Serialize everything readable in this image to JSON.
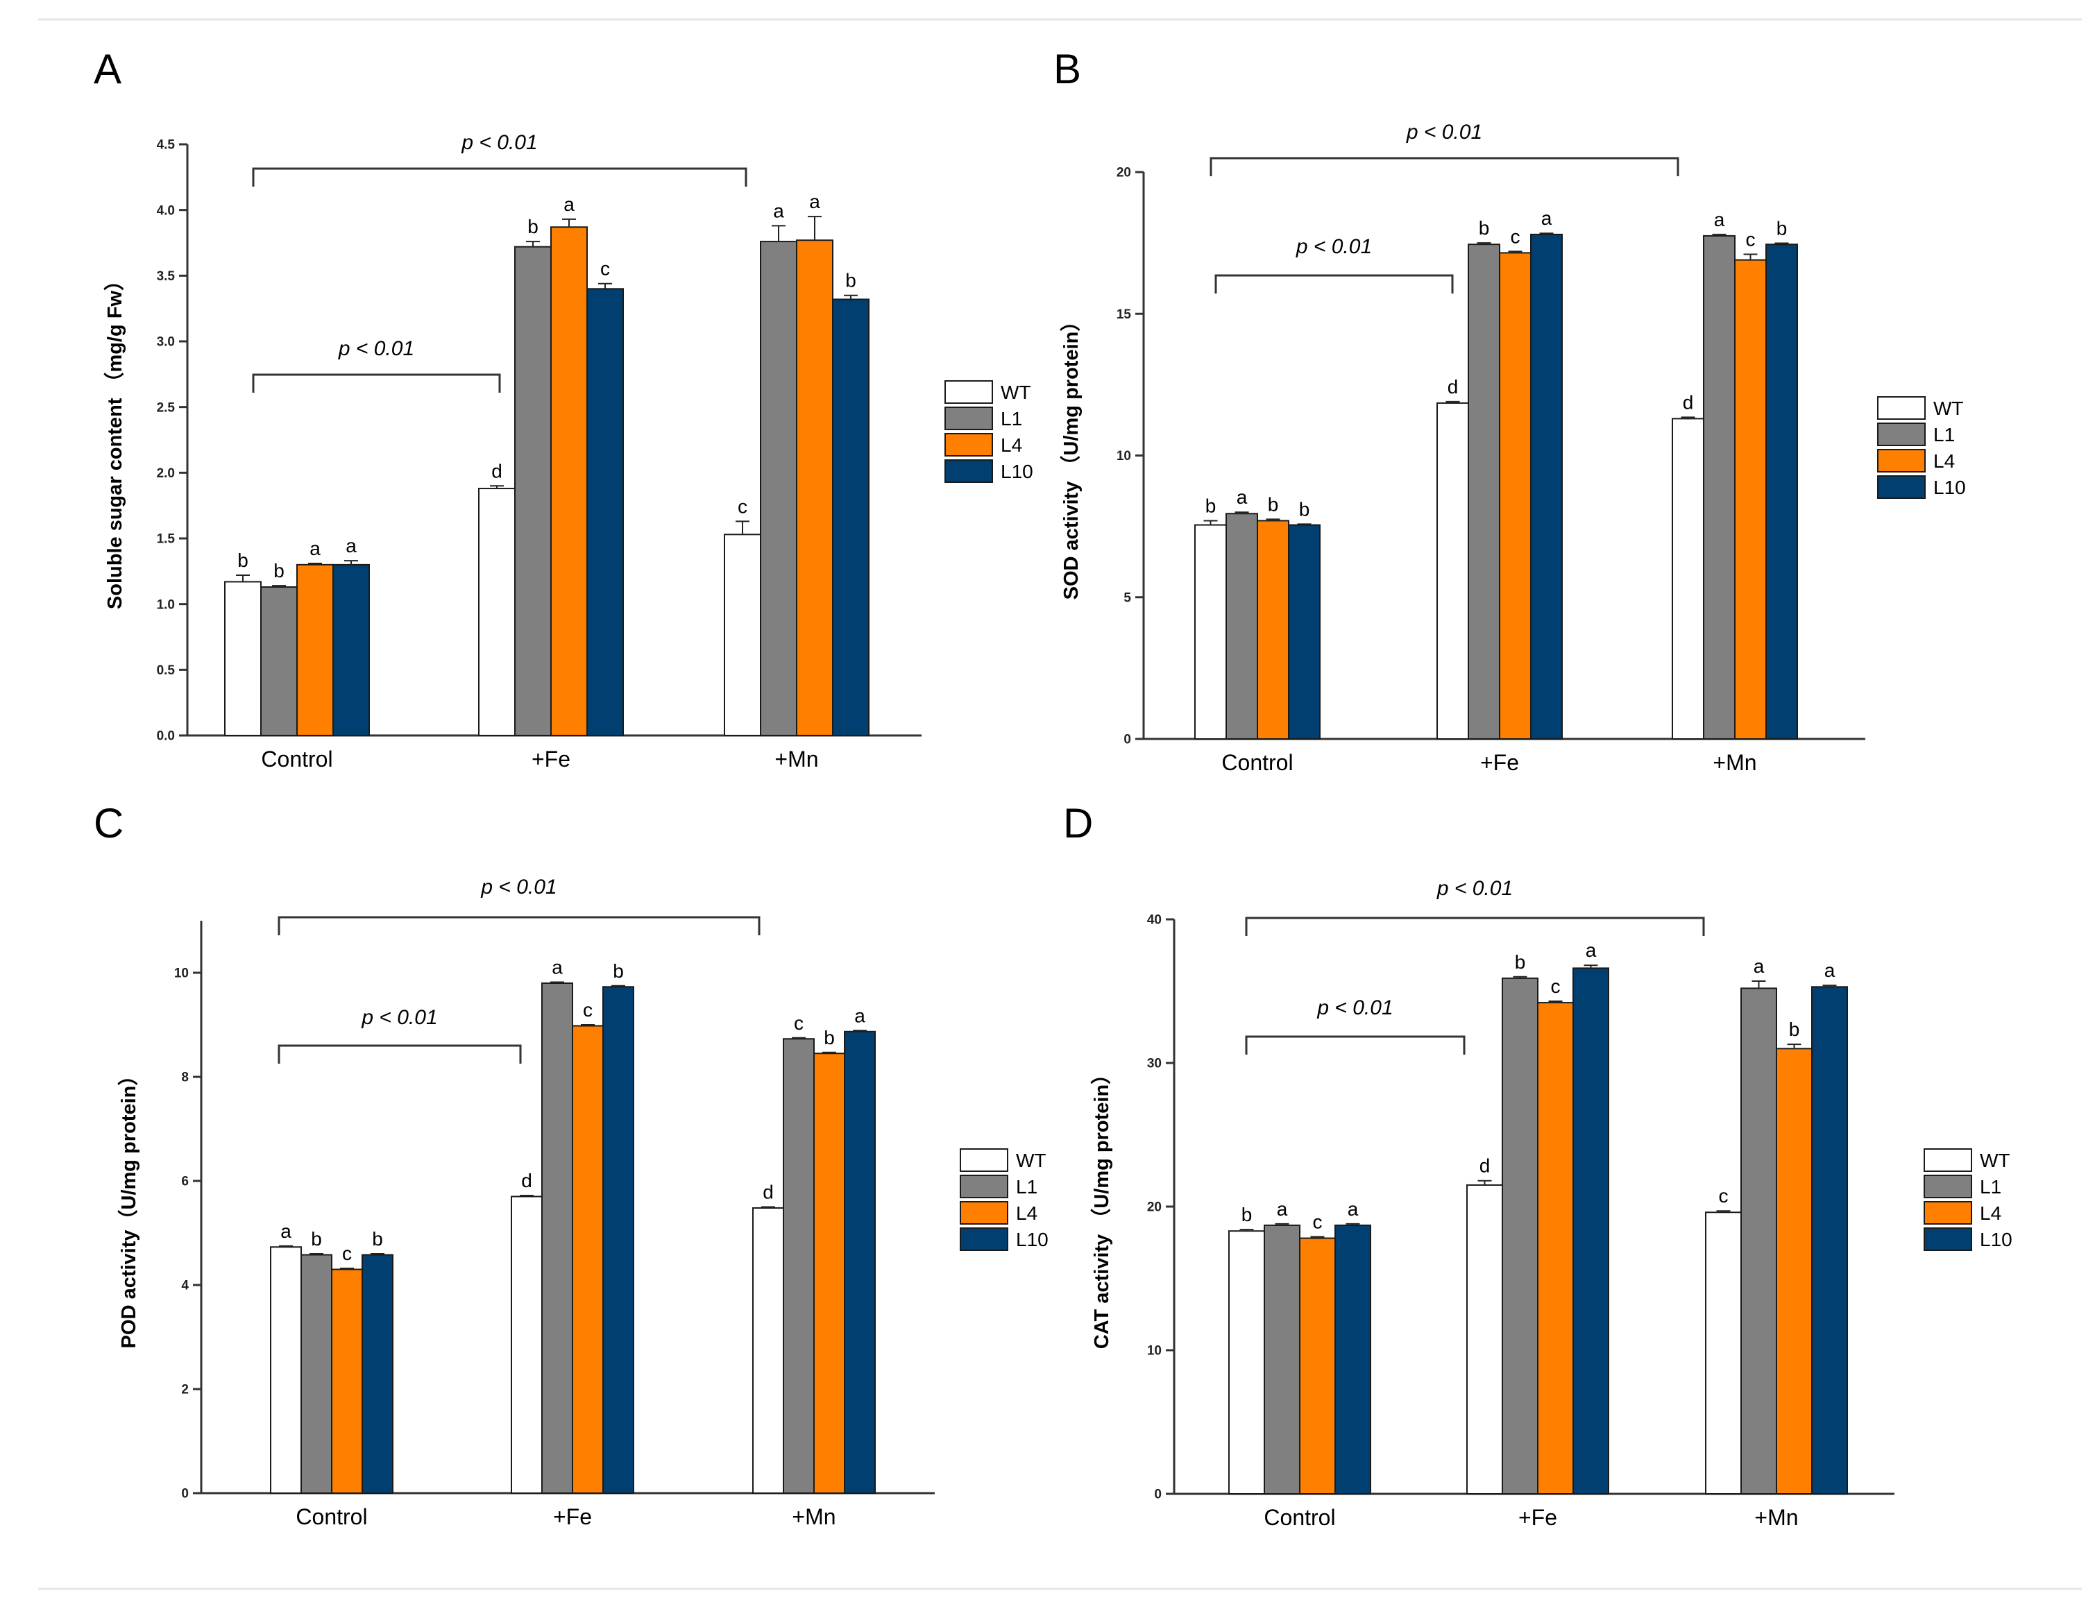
{
  "series": [
    {
      "name": "WT",
      "color": "#ffffff"
    },
    {
      "name": "L1",
      "color": "#808080"
    },
    {
      "name": "L4",
      "color": "#ff8000"
    },
    {
      "name": "L10",
      "color": "#003f6f"
    }
  ],
  "categories": [
    "Control",
    "+Fe",
    "+Mn"
  ],
  "chart_data": [
    {
      "panel": "A",
      "type": "bar",
      "title": "",
      "ylabel": "Soluble sugar content （mg/g Fw）",
      "ylim": [
        0,
        4.5
      ],
      "yticks": [
        "0.0",
        "0.5",
        "1.0",
        "1.5",
        "2.0",
        "2.5",
        "3.0",
        "3.5",
        "4.0",
        "4.5"
      ],
      "categories": [
        "Control",
        "+Fe",
        "+Mn"
      ],
      "series": [
        {
          "name": "WT",
          "values": [
            1.17,
            1.88,
            1.53
          ],
          "errors": [
            0.05,
            0.02,
            0.1
          ],
          "letters": [
            "b",
            "d",
            "c"
          ]
        },
        {
          "name": "L1",
          "values": [
            1.13,
            3.72,
            3.76
          ],
          "errors": [
            0.01,
            0.04,
            0.12
          ],
          "letters": [
            "b",
            "b",
            "a"
          ]
        },
        {
          "name": "L4",
          "values": [
            1.3,
            3.87,
            3.77
          ],
          "errors": [
            0.01,
            0.06,
            0.18
          ],
          "letters": [
            "a",
            "a",
            "a"
          ]
        },
        {
          "name": "L10",
          "values": [
            1.3,
            3.4,
            3.32
          ],
          "errors": [
            0.03,
            0.04,
            0.03
          ],
          "letters": [
            "a",
            "c",
            "b"
          ]
        }
      ],
      "brackets": [
        {
          "from": 0,
          "to": 2,
          "label": "p < 0.01"
        },
        {
          "from": 0,
          "to": 1,
          "label": "p < 0.01"
        }
      ]
    },
    {
      "panel": "B",
      "type": "bar",
      "title": "",
      "ylabel": "SOD activity （U/mg  protein）",
      "ylim": [
        0,
        20
      ],
      "yticks": [
        "0",
        "5",
        "10",
        "15",
        "20"
      ],
      "categories": [
        "Control",
        "+Fe",
        "+Mn"
      ],
      "series": [
        {
          "name": "WT",
          "values": [
            7.55,
            11.85,
            11.3
          ],
          "errors": [
            0.15,
            0.05,
            0.05
          ],
          "letters": [
            "b",
            "d",
            "d"
          ]
        },
        {
          "name": "L1",
          "values": [
            7.95,
            17.45,
            17.75
          ],
          "errors": [
            0.05,
            0.05,
            0.05
          ],
          "letters": [
            "a",
            "b",
            "a"
          ]
        },
        {
          "name": "L4",
          "values": [
            7.7,
            17.15,
            16.9
          ],
          "errors": [
            0.05,
            0.05,
            0.2
          ],
          "letters": [
            "b",
            "c",
            "c"
          ]
        },
        {
          "name": "L10",
          "values": [
            7.55,
            17.8,
            17.45
          ],
          "errors": [
            0.03,
            0.04,
            0.04
          ],
          "letters": [
            "b",
            "a",
            "b"
          ]
        }
      ],
      "brackets": [
        {
          "from": 0,
          "to": 2,
          "label": "p < 0.01"
        },
        {
          "from": 0,
          "to": 1,
          "label": "p < 0.01"
        }
      ]
    },
    {
      "panel": "C",
      "type": "bar",
      "title": "",
      "ylabel": "POD activity（U/mg  protein）",
      "ylim": [
        0,
        11
      ],
      "yticks": [
        "0",
        "2",
        "4",
        "6",
        "8",
        "10"
      ],
      "categories": [
        "Control",
        "+Fe",
        "+Mn"
      ],
      "series": [
        {
          "name": "WT",
          "values": [
            4.73,
            5.7,
            5.48
          ],
          "errors": [
            0.02,
            0.02,
            0.02
          ],
          "letters": [
            "a",
            "d",
            "d"
          ]
        },
        {
          "name": "L1",
          "values": [
            4.58,
            9.8,
            8.73
          ],
          "errors": [
            0.02,
            0.02,
            0.02
          ],
          "letters": [
            "b",
            "a",
            "c"
          ]
        },
        {
          "name": "L4",
          "values": [
            4.3,
            8.98,
            8.45
          ],
          "errors": [
            0.02,
            0.02,
            0.02
          ],
          "letters": [
            "c",
            "c",
            "b"
          ]
        },
        {
          "name": "L10",
          "values": [
            4.58,
            9.73,
            8.87
          ],
          "errors": [
            0.02,
            0.02,
            0.02
          ],
          "letters": [
            "b",
            "b",
            "a"
          ]
        }
      ],
      "brackets": [
        {
          "from": 0,
          "to": 2,
          "label": "p < 0.01"
        },
        {
          "from": 0,
          "to": 1,
          "label": "p < 0.01"
        }
      ]
    },
    {
      "panel": "D",
      "type": "bar",
      "title": "",
      "ylabel": "CAT activity （U/mg protein）",
      "ylim": [
        0,
        40
      ],
      "yticks": [
        "0",
        "10",
        "20",
        "30",
        "40"
      ],
      "categories": [
        "Control",
        "+Fe",
        "+Mn"
      ],
      "series": [
        {
          "name": "WT",
          "values": [
            18.3,
            21.5,
            19.6
          ],
          "errors": [
            0.1,
            0.3,
            0.1
          ],
          "letters": [
            "b",
            "d",
            "c"
          ]
        },
        {
          "name": "L1",
          "values": [
            18.7,
            35.9,
            35.2
          ],
          "errors": [
            0.1,
            0.1,
            0.5
          ],
          "letters": [
            "a",
            "b",
            "a"
          ]
        },
        {
          "name": "L4",
          "values": [
            17.8,
            34.2,
            31.0
          ],
          "errors": [
            0.1,
            0.1,
            0.3
          ],
          "letters": [
            "c",
            "c",
            "b"
          ]
        },
        {
          "name": "L10",
          "values": [
            18.7,
            36.6,
            35.3
          ],
          "errors": [
            0.1,
            0.2,
            0.1
          ],
          "letters": [
            "a",
            "a",
            "a"
          ]
        }
      ],
      "brackets": [
        {
          "from": 0,
          "to": 2,
          "label": "p < 0.01"
        },
        {
          "from": 0,
          "to": 1,
          "label": "p < 0.01"
        }
      ]
    }
  ]
}
